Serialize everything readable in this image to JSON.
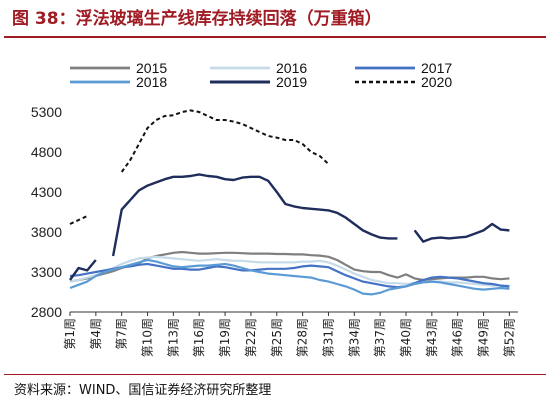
{
  "figure": {
    "title": "图 38：浮法玻璃生产线库存持续回落（万重箱）",
    "source": "资料来源：WIND、国信证券经济研究所整理"
  },
  "chart_data": {
    "type": "line",
    "title": "浮法玻璃生产线库存持续回落（万重箱）",
    "unit": "万重箱",
    "xlabel": "",
    "ylabel": "",
    "x_ticks": [
      "第1周",
      "第4周",
      "第7周",
      "第10周",
      "第13周",
      "第16周",
      "第19周",
      "第22周",
      "第25周",
      "第28周",
      "第31周",
      "第34周",
      "第37周",
      "第40周",
      "第43周",
      "第46周",
      "第49周",
      "第52周"
    ],
    "y_ticks": [
      2800,
      3300,
      3800,
      4300,
      4800,
      5300
    ],
    "ylim": [
      2800,
      5450
    ],
    "xlim": [
      1,
      53
    ],
    "grid": false,
    "legend": "top",
    "series": [
      {
        "name": "2015",
        "color": "#7f7f7f",
        "dash": "solid",
        "width": 2.2,
        "points": [
          [
            1,
            3180
          ],
          [
            2,
            3200
          ],
          [
            3,
            3220
          ],
          [
            4,
            3250
          ],
          [
            5,
            3280
          ],
          [
            6,
            3310
          ],
          [
            7,
            3350
          ],
          [
            8,
            3380
          ],
          [
            9,
            3410
          ],
          [
            10,
            3470
          ],
          [
            11,
            3500
          ],
          [
            12,
            3520
          ],
          [
            13,
            3540
          ],
          [
            14,
            3550
          ],
          [
            15,
            3540
          ],
          [
            16,
            3530
          ],
          [
            17,
            3530
          ],
          [
            18,
            3535
          ],
          [
            19,
            3540
          ],
          [
            20,
            3540
          ],
          [
            21,
            3535
          ],
          [
            22,
            3530
          ],
          [
            23,
            3530
          ],
          [
            24,
            3530
          ],
          [
            25,
            3525
          ],
          [
            26,
            3525
          ],
          [
            27,
            3520
          ],
          [
            28,
            3520
          ],
          [
            29,
            3510
          ],
          [
            30,
            3505
          ],
          [
            31,
            3490
          ],
          [
            32,
            3450
          ],
          [
            33,
            3390
          ],
          [
            34,
            3330
          ],
          [
            35,
            3310
          ],
          [
            36,
            3300
          ],
          [
            37,
            3300
          ],
          [
            38,
            3260
          ],
          [
            39,
            3230
          ],
          [
            40,
            3270
          ],
          [
            41,
            3220
          ],
          [
            42,
            3200
          ],
          [
            43,
            3210
          ],
          [
            44,
            3220
          ],
          [
            45,
            3230
          ],
          [
            46,
            3230
          ],
          [
            47,
            3230
          ],
          [
            48,
            3240
          ],
          [
            49,
            3240
          ],
          [
            50,
            3220
          ],
          [
            51,
            3210
          ],
          [
            52,
            3220
          ]
        ]
      },
      {
        "name": "2016",
        "color": "#c5dbe8",
        "dash": "solid",
        "width": 2.2,
        "points": [
          [
            1,
            3180
          ],
          [
            2,
            3200
          ],
          [
            3,
            3230
          ],
          [
            4,
            3260
          ],
          [
            5,
            3300
          ],
          [
            6,
            3350
          ],
          [
            7,
            3400
          ],
          [
            8,
            3440
          ],
          [
            9,
            3470
          ],
          [
            10,
            3480
          ],
          [
            11,
            3490
          ],
          [
            12,
            3480
          ],
          [
            13,
            3470
          ],
          [
            14,
            3460
          ],
          [
            15,
            3450
          ],
          [
            16,
            3440
          ],
          [
            17,
            3450
          ],
          [
            18,
            3460
          ],
          [
            19,
            3450
          ],
          [
            20,
            3440
          ],
          [
            21,
            3440
          ],
          [
            22,
            3430
          ],
          [
            23,
            3420
          ],
          [
            24,
            3420
          ],
          [
            25,
            3420
          ],
          [
            26,
            3420
          ],
          [
            27,
            3420
          ],
          [
            28,
            3430
          ],
          [
            29,
            3430
          ],
          [
            30,
            3440
          ],
          [
            31,
            3420
          ],
          [
            32,
            3380
          ],
          [
            33,
            3330
          ],
          [
            34,
            3280
          ],
          [
            35,
            3240
          ],
          [
            36,
            3200
          ],
          [
            37,
            3180
          ],
          [
            38,
            3160
          ],
          [
            39,
            3160
          ],
          [
            40,
            3150
          ],
          [
            41,
            3160
          ],
          [
            42,
            3170
          ],
          [
            43,
            3180
          ],
          [
            44,
            3180
          ],
          [
            45,
            3170
          ],
          [
            46,
            3170
          ],
          [
            47,
            3160
          ],
          [
            48,
            3150
          ],
          [
            49,
            3140
          ],
          [
            50,
            3130
          ],
          [
            51,
            3130
          ],
          [
            52,
            3130
          ]
        ]
      },
      {
        "name": "2017",
        "color": "#4472c4",
        "dash": "solid",
        "width": 2.2,
        "points": [
          [
            1,
            3250
          ],
          [
            2,
            3260
          ],
          [
            3,
            3280
          ],
          [
            4,
            3300
          ],
          [
            5,
            3320
          ],
          [
            6,
            3340
          ],
          [
            7,
            3360
          ],
          [
            8,
            3370
          ],
          [
            9,
            3390
          ],
          [
            10,
            3400
          ],
          [
            11,
            3380
          ],
          [
            12,
            3360
          ],
          [
            13,
            3340
          ],
          [
            14,
            3340
          ],
          [
            15,
            3330
          ],
          [
            16,
            3330
          ],
          [
            17,
            3350
          ],
          [
            18,
            3370
          ],
          [
            19,
            3360
          ],
          [
            20,
            3340
          ],
          [
            21,
            3320
          ],
          [
            22,
            3320
          ],
          [
            23,
            3330
          ],
          [
            24,
            3340
          ],
          [
            25,
            3340
          ],
          [
            26,
            3340
          ],
          [
            27,
            3350
          ],
          [
            28,
            3370
          ],
          [
            29,
            3380
          ],
          [
            30,
            3370
          ],
          [
            31,
            3360
          ],
          [
            32,
            3310
          ],
          [
            33,
            3260
          ],
          [
            34,
            3220
          ],
          [
            35,
            3180
          ],
          [
            36,
            3160
          ],
          [
            37,
            3140
          ],
          [
            38,
            3120
          ],
          [
            39,
            3110
          ],
          [
            40,
            3120
          ],
          [
            41,
            3160
          ],
          [
            42,
            3200
          ],
          [
            43,
            3230
          ],
          [
            44,
            3240
          ],
          [
            45,
            3230
          ],
          [
            46,
            3220
          ],
          [
            47,
            3200
          ],
          [
            48,
            3180
          ],
          [
            49,
            3160
          ],
          [
            50,
            3150
          ],
          [
            51,
            3130
          ],
          [
            52,
            3120
          ]
        ]
      },
      {
        "name": "2018",
        "color": "#5b9bd5",
        "dash": "solid",
        "width": 2.2,
        "points": [
          [
            1,
            3100
          ],
          [
            2,
            3140
          ],
          [
            3,
            3180
          ],
          [
            4,
            3250
          ],
          [
            5,
            3300
          ],
          [
            6,
            3330
          ],
          [
            7,
            3360
          ],
          [
            8,
            3390
          ],
          [
            9,
            3420
          ],
          [
            10,
            3450
          ],
          [
            11,
            3430
          ],
          [
            12,
            3400
          ],
          [
            13,
            3370
          ],
          [
            14,
            3360
          ],
          [
            15,
            3370
          ],
          [
            16,
            3380
          ],
          [
            17,
            3380
          ],
          [
            18,
            3390
          ],
          [
            19,
            3400
          ],
          [
            20,
            3380
          ],
          [
            21,
            3350
          ],
          [
            22,
            3320
          ],
          [
            23,
            3300
          ],
          [
            24,
            3280
          ],
          [
            25,
            3270
          ],
          [
            26,
            3260
          ],
          [
            27,
            3250
          ],
          [
            28,
            3240
          ],
          [
            29,
            3230
          ],
          [
            30,
            3200
          ],
          [
            31,
            3180
          ],
          [
            32,
            3150
          ],
          [
            33,
            3120
          ],
          [
            34,
            3080
          ],
          [
            35,
            3030
          ],
          [
            36,
            3020
          ],
          [
            37,
            3040
          ],
          [
            38,
            3080
          ],
          [
            39,
            3100
          ],
          [
            40,
            3120
          ],
          [
            41,
            3150
          ],
          [
            42,
            3170
          ],
          [
            43,
            3180
          ],
          [
            44,
            3170
          ],
          [
            45,
            3150
          ],
          [
            46,
            3130
          ],
          [
            47,
            3110
          ],
          [
            48,
            3090
          ],
          [
            49,
            3080
          ],
          [
            50,
            3090
          ],
          [
            51,
            3100
          ],
          [
            52,
            3090
          ]
        ]
      },
      {
        "name": "2019",
        "color": "#1f2d5c",
        "dash": "solid",
        "width": 2.4,
        "points": [
          [
            1,
            3200
          ],
          [
            2,
            3350
          ],
          [
            3,
            3320
          ],
          [
            4,
            3450
          ],
          [
            null,
            null
          ],
          [
            6,
            3500
          ],
          [
            7,
            4080
          ],
          [
            8,
            4200
          ],
          [
            9,
            4320
          ],
          [
            10,
            4380
          ],
          [
            11,
            4420
          ],
          [
            12,
            4460
          ],
          [
            13,
            4490
          ],
          [
            14,
            4490
          ],
          [
            15,
            4500
          ],
          [
            16,
            4520
          ],
          [
            17,
            4500
          ],
          [
            18,
            4490
          ],
          [
            19,
            4460
          ],
          [
            20,
            4450
          ],
          [
            21,
            4480
          ],
          [
            22,
            4490
          ],
          [
            23,
            4490
          ],
          [
            24,
            4440
          ],
          [
            25,
            4300
          ],
          [
            26,
            4150
          ],
          [
            27,
            4120
          ],
          [
            28,
            4100
          ],
          [
            29,
            4090
          ],
          [
            30,
            4080
          ],
          [
            31,
            4070
          ],
          [
            32,
            4040
          ],
          [
            33,
            3980
          ],
          [
            34,
            3900
          ],
          [
            35,
            3820
          ],
          [
            36,
            3770
          ],
          [
            37,
            3730
          ],
          [
            38,
            3720
          ],
          [
            39,
            3720
          ],
          [
            null,
            null
          ],
          [
            41,
            3820
          ],
          [
            42,
            3680
          ],
          [
            43,
            3720
          ],
          [
            44,
            3730
          ],
          [
            45,
            3720
          ],
          [
            46,
            3730
          ],
          [
            47,
            3740
          ],
          [
            48,
            3780
          ],
          [
            49,
            3820
          ],
          [
            50,
            3900
          ],
          [
            51,
            3830
          ],
          [
            52,
            3820
          ]
        ]
      },
      {
        "name": "2020",
        "color": "#111111",
        "dash": "4,3",
        "width": 2.0,
        "points": [
          [
            1,
            3900
          ],
          [
            2,
            3950
          ],
          [
            3,
            4000
          ],
          [
            null,
            null
          ],
          [
            7,
            4550
          ],
          [
            8,
            4700
          ],
          [
            9,
            4900
          ],
          [
            10,
            5100
          ],
          [
            11,
            5200
          ],
          [
            12,
            5250
          ],
          [
            13,
            5260
          ],
          [
            14,
            5300
          ],
          [
            15,
            5320
          ],
          [
            16,
            5300
          ],
          [
            17,
            5250
          ],
          [
            18,
            5200
          ],
          [
            19,
            5200
          ],
          [
            20,
            5180
          ],
          [
            21,
            5150
          ],
          [
            22,
            5100
          ],
          [
            23,
            5050
          ],
          [
            24,
            5000
          ],
          [
            25,
            4980
          ],
          [
            26,
            4950
          ],
          [
            27,
            4950
          ],
          [
            28,
            4900
          ],
          [
            29,
            4800
          ],
          [
            30,
            4750
          ],
          [
            31,
            4650
          ]
        ]
      }
    ]
  }
}
